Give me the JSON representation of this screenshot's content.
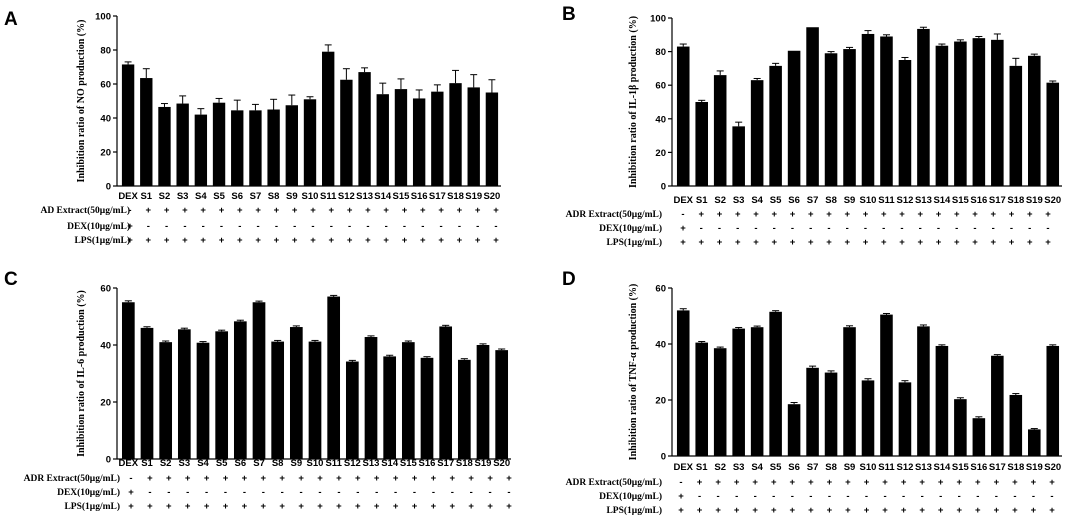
{
  "chart_data": [
    {
      "panel": "A",
      "type": "bar",
      "title": "",
      "ylabel": "Inhibition ratio of NO production (%)",
      "xlabel": "",
      "ylim": [
        0,
        100
      ],
      "yticks": [
        0,
        20,
        40,
        60,
        80,
        100
      ],
      "categories": [
        "DEX",
        "S1",
        "S2",
        "S3",
        "S4",
        "S5",
        "S6",
        "S7",
        "S8",
        "S9",
        "S10",
        "S11",
        "S12",
        "S13",
        "S14",
        "S15",
        "S16",
        "S17",
        "S18",
        "S19",
        "S20"
      ],
      "values": [
        71.5,
        63.5,
        46.5,
        48.5,
        42,
        49,
        44.5,
        44.5,
        45,
        47.5,
        51,
        79,
        62.5,
        67,
        54,
        57,
        51.5,
        55.5,
        60.5,
        58,
        55
      ],
      "errors": [
        1.5,
        5.5,
        2,
        4.5,
        3.5,
        2.5,
        6,
        3.5,
        6,
        6,
        1.5,
        4,
        6.5,
        2.5,
        6.5,
        6,
        5,
        4,
        7.5,
        7.5,
        7.5
      ],
      "conditions": [
        {
          "label": "AD Extract(50μg/mL)",
          "signs": [
            "-",
            "+",
            "+",
            "+",
            "+",
            "+",
            "+",
            "+",
            "+",
            "+",
            "+",
            "+",
            "+",
            "+",
            "+",
            "+",
            "+",
            "+",
            "+",
            "+",
            "+"
          ]
        },
        {
          "label": "DEX(10μg/mL)",
          "signs": [
            "+",
            "-",
            "-",
            "-",
            "-",
            "-",
            "-",
            "-",
            "-",
            "-",
            "-",
            "-",
            "-",
            "-",
            "-",
            "-",
            "-",
            "-",
            "-",
            "-",
            "-"
          ]
        },
        {
          "label": "LPS(1μg/mL)",
          "signs": [
            "+",
            "+",
            "+",
            "+",
            "+",
            "+",
            "+",
            "+",
            "+",
            "+",
            "+",
            "+",
            "+",
            "+",
            "+",
            "+",
            "+",
            "+",
            "+",
            "+",
            "+"
          ]
        }
      ]
    },
    {
      "panel": "B",
      "type": "bar",
      "title": "",
      "ylabel": "Inhibition ratio of IL-1β production (%)",
      "xlabel": "",
      "ylim": [
        0,
        100
      ],
      "yticks": [
        0,
        20,
        40,
        60,
        80,
        100
      ],
      "categories": [
        "DEX",
        "S1",
        "S2",
        "S3",
        "S4",
        "S5",
        "S6",
        "S7",
        "S8",
        "S9",
        "S10",
        "S11",
        "S12",
        "S13",
        "S14",
        "S15",
        "S16",
        "S17",
        "S18",
        "S19",
        "S20"
      ],
      "values": [
        83,
        50,
        66,
        35.5,
        63,
        71.5,
        80.5,
        94.5,
        79,
        81.5,
        90.5,
        89,
        75,
        93.5,
        83.5,
        86,
        88,
        87,
        71.5,
        77.5,
        61.5
      ],
      "errors": [
        1.5,
        1,
        2.5,
        2.5,
        1,
        1.5,
        0,
        0,
        1,
        1,
        2,
        1,
        1.5,
        1,
        1,
        1,
        1,
        3.5,
        4.5,
        1,
        1
      ],
      "conditions": [
        {
          "label": "ADR Extract(50μg/mL)",
          "signs": [
            "-",
            "+",
            "+",
            "+",
            "+",
            "+",
            "+",
            "+",
            "+",
            "+",
            "+",
            "+",
            "+",
            "+",
            "+",
            "+",
            "+",
            "+",
            "+",
            "+",
            "+"
          ]
        },
        {
          "label": "DEX(10μg/mL)",
          "signs": [
            "+",
            "-",
            "-",
            "-",
            "-",
            "-",
            "-",
            "-",
            "-",
            "-",
            "-",
            "-",
            "-",
            "-",
            "-",
            "-",
            "-",
            "-",
            "-",
            "-",
            "-"
          ]
        },
        {
          "label": "LPS(1μg/mL)",
          "signs": [
            "+",
            "+",
            "+",
            "+",
            "+",
            "+",
            "+",
            "+",
            "+",
            "+",
            "+",
            "+",
            "+",
            "+",
            "+",
            "+",
            "+",
            "+",
            "+",
            "+",
            "+"
          ]
        }
      ]
    },
    {
      "panel": "C",
      "type": "bar",
      "title": "",
      "ylabel": "Inhibition ratio of IL-6 production (%)",
      "xlabel": "",
      "ylim": [
        0,
        60
      ],
      "yticks": [
        0,
        20,
        40,
        60
      ],
      "categories": [
        "DEX",
        "S1",
        "S2",
        "S3",
        "S4",
        "S5",
        "S6",
        "S7",
        "S8",
        "S9",
        "S10",
        "S11",
        "S12",
        "S13",
        "S14",
        "S15",
        "S16",
        "S17",
        "S18",
        "S19",
        "S20"
      ],
      "values": [
        55,
        46,
        41,
        45.5,
        40.8,
        44.8,
        48.3,
        55,
        41.2,
        46.3,
        41.2,
        57,
        34.2,
        42.8,
        36,
        41,
        35.5,
        46.5,
        34.8,
        40,
        38.2
      ],
      "errors": [
        0.5,
        0.4,
        0.4,
        0.4,
        0.4,
        0.4,
        0.4,
        0.4,
        0.4,
        0.4,
        0.4,
        0.4,
        0.4,
        0.4,
        0.4,
        0.4,
        0.4,
        0.4,
        0.4,
        0.4,
        0.4
      ],
      "conditions": [
        {
          "label": "ADR Extract(50μg/mL)",
          "signs": [
            "-",
            "+",
            "+",
            "+",
            "+",
            "+",
            "+",
            "+",
            "+",
            "+",
            "+",
            "+",
            "+",
            "+",
            "+",
            "+",
            "+",
            "+",
            "+",
            "+",
            "+"
          ]
        },
        {
          "label": "DEX(10μg/mL)",
          "signs": [
            "+",
            "-",
            "-",
            "-",
            "-",
            "-",
            "-",
            "-",
            "-",
            "-",
            "-",
            "-",
            "-",
            "-",
            "-",
            "-",
            "-",
            "-",
            "-",
            "-",
            "-"
          ]
        },
        {
          "label": "LPS(1μg/mL)",
          "signs": [
            "+",
            "+",
            "+",
            "+",
            "+",
            "+",
            "+",
            "+",
            "+",
            "+",
            "+",
            "+",
            "+",
            "+",
            "+",
            "+",
            "+",
            "+",
            "+",
            "+",
            "+"
          ]
        }
      ]
    },
    {
      "panel": "D",
      "type": "bar",
      "title": "",
      "ylabel": "Inhibition ratio of TNF-α production (%)",
      "xlabel": "",
      "ylim": [
        0,
        60
      ],
      "yticks": [
        0,
        20,
        40,
        60
      ],
      "categories": [
        "DEX",
        "S1",
        "S2",
        "S3",
        "S4",
        "S5",
        "S6",
        "S7",
        "S8",
        "S9",
        "S10",
        "S11",
        "S12",
        "S13",
        "S14",
        "S15",
        "S16",
        "S17",
        "S18",
        "S19",
        "S20"
      ],
      "values": [
        52,
        40.5,
        38.5,
        45.5,
        46,
        51.5,
        18.5,
        31.5,
        29.8,
        46,
        27,
        50.5,
        26.3,
        46.3,
        39.3,
        20.3,
        13.5,
        35.8,
        21.8,
        9.5,
        39.3
      ],
      "errors": [
        0.6,
        0.4,
        0.4,
        0.4,
        0.4,
        0.4,
        0.6,
        0.6,
        0.6,
        0.5,
        0.6,
        0.4,
        0.6,
        0.5,
        0.4,
        0.5,
        0.5,
        0.4,
        0.5,
        0.3,
        0.4
      ],
      "conditions": [
        {
          "label": "ADR Extract(50μg/mL)",
          "signs": [
            "-",
            "+",
            "+",
            "+",
            "+",
            "+",
            "+",
            "+",
            "+",
            "+",
            "+",
            "+",
            "+",
            "+",
            "+",
            "+",
            "+",
            "+",
            "+",
            "+",
            "+"
          ]
        },
        {
          "label": "DEX(10μg/mL)",
          "signs": [
            "+",
            "-",
            "-",
            "-",
            "-",
            "-",
            "-",
            "-",
            "-",
            "-",
            "-",
            "-",
            "-",
            "-",
            "-",
            "-",
            "-",
            "-",
            "-",
            "-",
            "-"
          ]
        },
        {
          "label": "LPS(1μg/mL)",
          "signs": [
            "+",
            "+",
            "+",
            "+",
            "+",
            "+",
            "+",
            "+",
            "+",
            "+",
            "+",
            "+",
            "+",
            "+",
            "+",
            "+",
            "+",
            "+",
            "+",
            "+",
            "+"
          ]
        }
      ]
    }
  ],
  "colors": {
    "bar": "#000000",
    "axis": "#000000",
    "background": "#ffffff"
  }
}
